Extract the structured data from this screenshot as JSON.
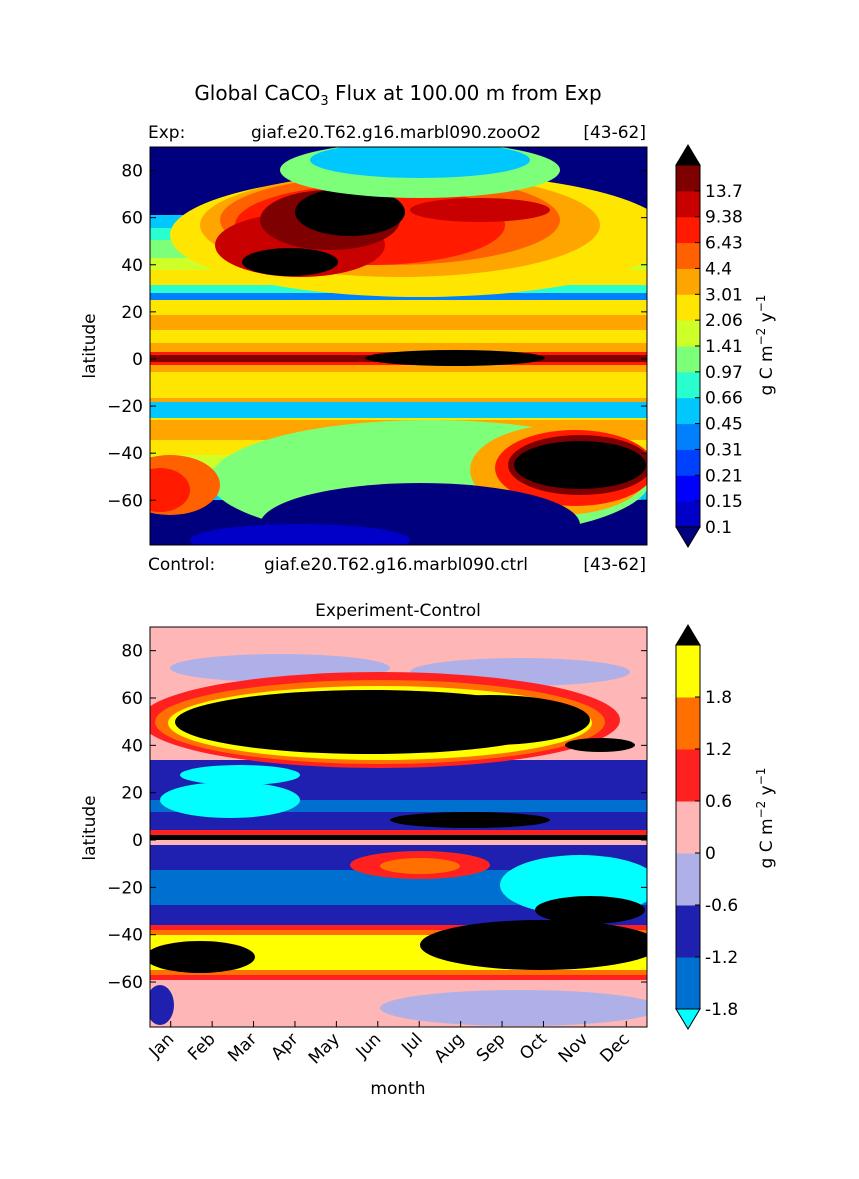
{
  "figure": {
    "title_prefix": "Global CaCO",
    "title_sub": "3",
    "title_suffix": " Flux at 100.00 m from Exp"
  },
  "top_panel": {
    "exp_label": "Exp:",
    "exp_case": "giaf.e20.T62.g16.marbl090.zooO2",
    "exp_years": "[43-62]",
    "ctrl_label": "Control:",
    "ctrl_case": "giaf.e20.T62.g16.marbl090.ctrl",
    "ctrl_years": "[43-62]"
  },
  "bottom_panel": {
    "title": "Experiment-Control",
    "xlabel": "month"
  },
  "colorbar_unit": {
    "base": "g C m",
    "exp1": "−2",
    "mid": " y",
    "exp2": "−1"
  },
  "chart_data": [
    {
      "type": "heatmap",
      "name": "exp",
      "ylabel": "latitude",
      "xlim": [
        0.5,
        12.5
      ],
      "ylim": [
        -79,
        90
      ],
      "yticks": [
        80,
        60,
        40,
        20,
        0,
        -20,
        -40,
        -60
      ],
      "ytick_labels": [
        "80",
        "60",
        "40",
        "20",
        "0",
        "−20",
        "−40",
        "−60"
      ],
      "levels": [
        0.1,
        0.15,
        0.21,
        0.31,
        0.45,
        0.66,
        0.97,
        1.41,
        2.06,
        3.01,
        4.4,
        6.43,
        9.38,
        13.7
      ],
      "colorbar_labels": [
        "13.7",
        "9.38",
        "6.43",
        "4.4",
        "3.01",
        "2.06",
        "1.41",
        "0.97",
        "0.66",
        "0.45",
        "0.31",
        "0.21",
        "0.15",
        "0.1"
      ],
      "colors": [
        "#00007f",
        "#0000c8",
        "#0000ff",
        "#0040ff",
        "#0080ff",
        "#00c8ff",
        "#29ffce",
        "#7dff7a",
        "#ceff29",
        "#ffe600",
        "#ffa500",
        "#ff6000",
        "#ff1a00",
        "#c80000",
        "#7f0000",
        "#000000"
      ],
      "extend": "both",
      "colorbar_position": "right"
    },
    {
      "type": "heatmap",
      "name": "diff",
      "title": "Experiment-Control",
      "xlabel": "month",
      "ylabel": "latitude",
      "xlim": [
        0.5,
        12.5
      ],
      "ylim": [
        -79,
        90
      ],
      "xticks": [
        "Jan",
        "Feb",
        "Mar",
        "Apr",
        "May",
        "Jun",
        "Jul",
        "Aug",
        "Sep",
        "Oct",
        "Nov",
        "Dec"
      ],
      "yticks": [
        80,
        60,
        40,
        20,
        0,
        -20,
        -40,
        -60
      ],
      "ytick_labels": [
        "80",
        "60",
        "40",
        "20",
        "0",
        "−20",
        "−40",
        "−60"
      ],
      "levels": [
        -2.4,
        -1.8,
        -1.2,
        -0.6,
        0,
        0.6,
        1.2,
        1.8,
        2.4
      ],
      "colorbar_labels": [
        "1.8",
        "1.2",
        "0.6",
        "0",
        "-0.6",
        "-1.2",
        "-1.8"
      ],
      "colors": [
        "#00ffff",
        "#0070d0",
        "#2020b0",
        "#b0b0e8",
        "#ffb6b6",
        "#ff2020",
        "#ff7000",
        "#ffff00",
        "#000000"
      ],
      "extend": "both",
      "colorbar_position": "right"
    }
  ]
}
